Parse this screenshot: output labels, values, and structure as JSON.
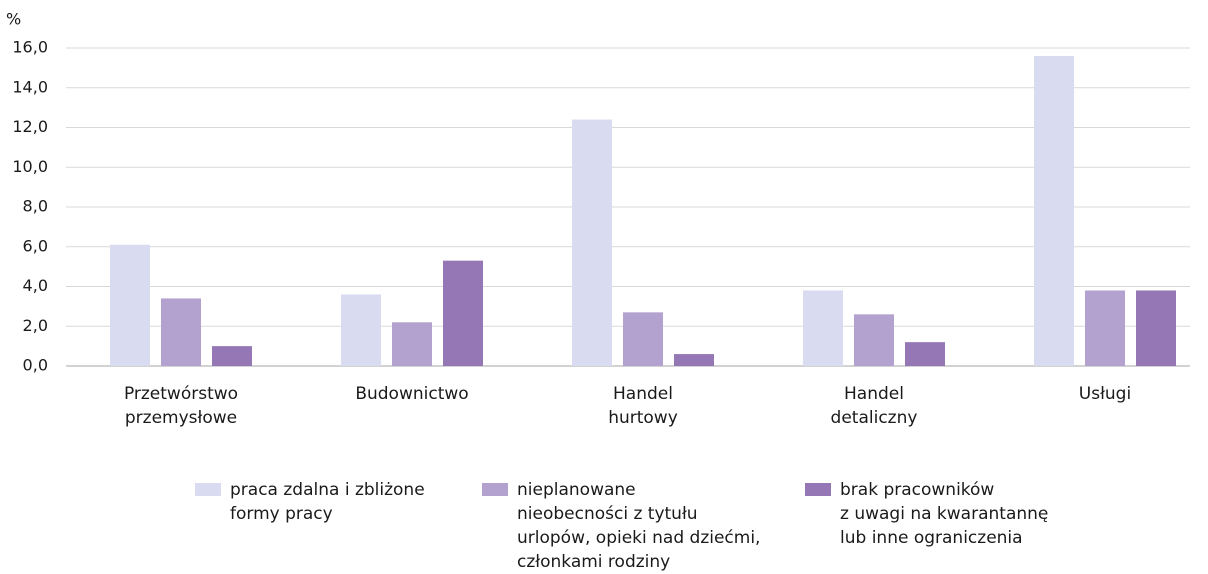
{
  "chart_data": {
    "type": "bar",
    "y_unit": "%",
    "categories": [
      "Przetwórstwo\nprzemysłowe",
      "Budownictwo",
      "Handel\nhurtowy",
      "Handel\ndetaliczny",
      "Usługi"
    ],
    "series": [
      {
        "name": "praca zdalna i zbliżone\nformy pracy",
        "color": "#d9dbf0",
        "values": [
          6.1,
          3.6,
          12.4,
          3.8,
          15.6
        ]
      },
      {
        "name": "nieplanowane\nnieobecności z tytułu\nurlopów, opieki nad dziećmi,\nczłonkami rodziny",
        "color": "#b3a2d0",
        "values": [
          3.4,
          2.2,
          2.7,
          2.6,
          3.8
        ]
      },
      {
        "name": "brak pracowników\nz uwagi na kwarantannę\nlub inne ograniczenia",
        "color": "#9677b5",
        "values": [
          1.0,
          5.3,
          0.6,
          1.2,
          3.8
        ]
      }
    ],
    "ylim": [
      0,
      16
    ],
    "yticks": [
      {
        "value": 0,
        "label": "0,0"
      },
      {
        "value": 2,
        "label": "2,0"
      },
      {
        "value": 4,
        "label": "4,0"
      },
      {
        "value": 6,
        "label": "6,0"
      },
      {
        "value": 8,
        "label": "8,0"
      },
      {
        "value": 10,
        "label": "10,0"
      },
      {
        "value": 12,
        "label": "12,0"
      },
      {
        "value": 14,
        "label": "14,0"
      },
      {
        "value": 16,
        "label": "16,0"
      }
    ],
    "grid": true
  }
}
